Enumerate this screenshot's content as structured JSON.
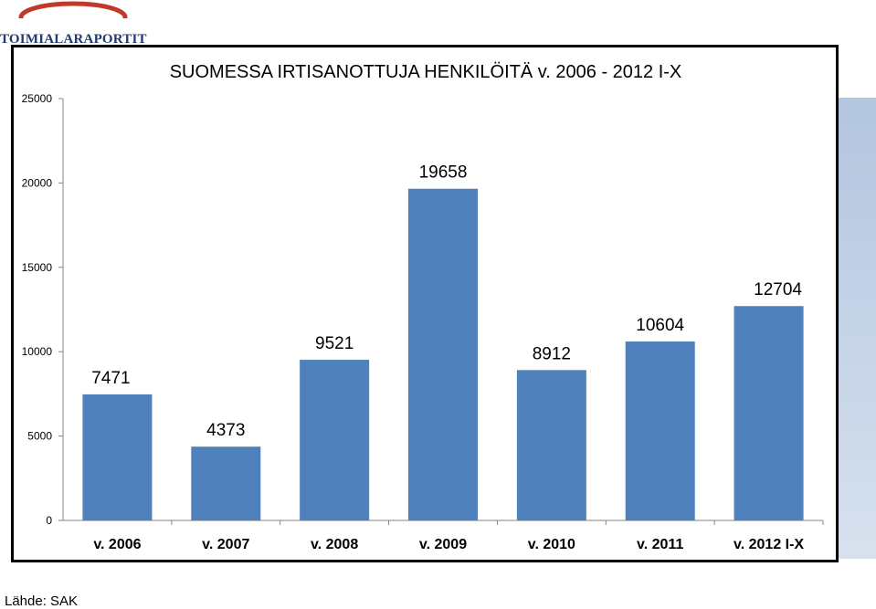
{
  "logo": {
    "text": "TOIMIALARAPORTIT"
  },
  "source": "Lähde: SAK",
  "chart_data": {
    "type": "bar",
    "title": "SUOMESSA IRTISANOTTUJA HENKILÖITÄ v. 2006 - 2012 I-X",
    "categories": [
      "v. 2006",
      "v. 2007",
      "v. 2008",
      "v. 2009",
      "v. 2010",
      "v. 2011",
      "v. 2012 I-X"
    ],
    "values": [
      7471,
      4373,
      9521,
      19658,
      8912,
      10604,
      12704
    ],
    "value_labels": [
      "7471",
      "4373",
      "9521",
      "19658",
      "8912",
      "10604",
      "12704"
    ],
    "yticks": [
      "0",
      "5000",
      "10000",
      "15000",
      "20000",
      "25000"
    ],
    "ylim": [
      0,
      25000
    ],
    "grid": false,
    "legend": "none",
    "bar_color": "#4f81bd"
  }
}
